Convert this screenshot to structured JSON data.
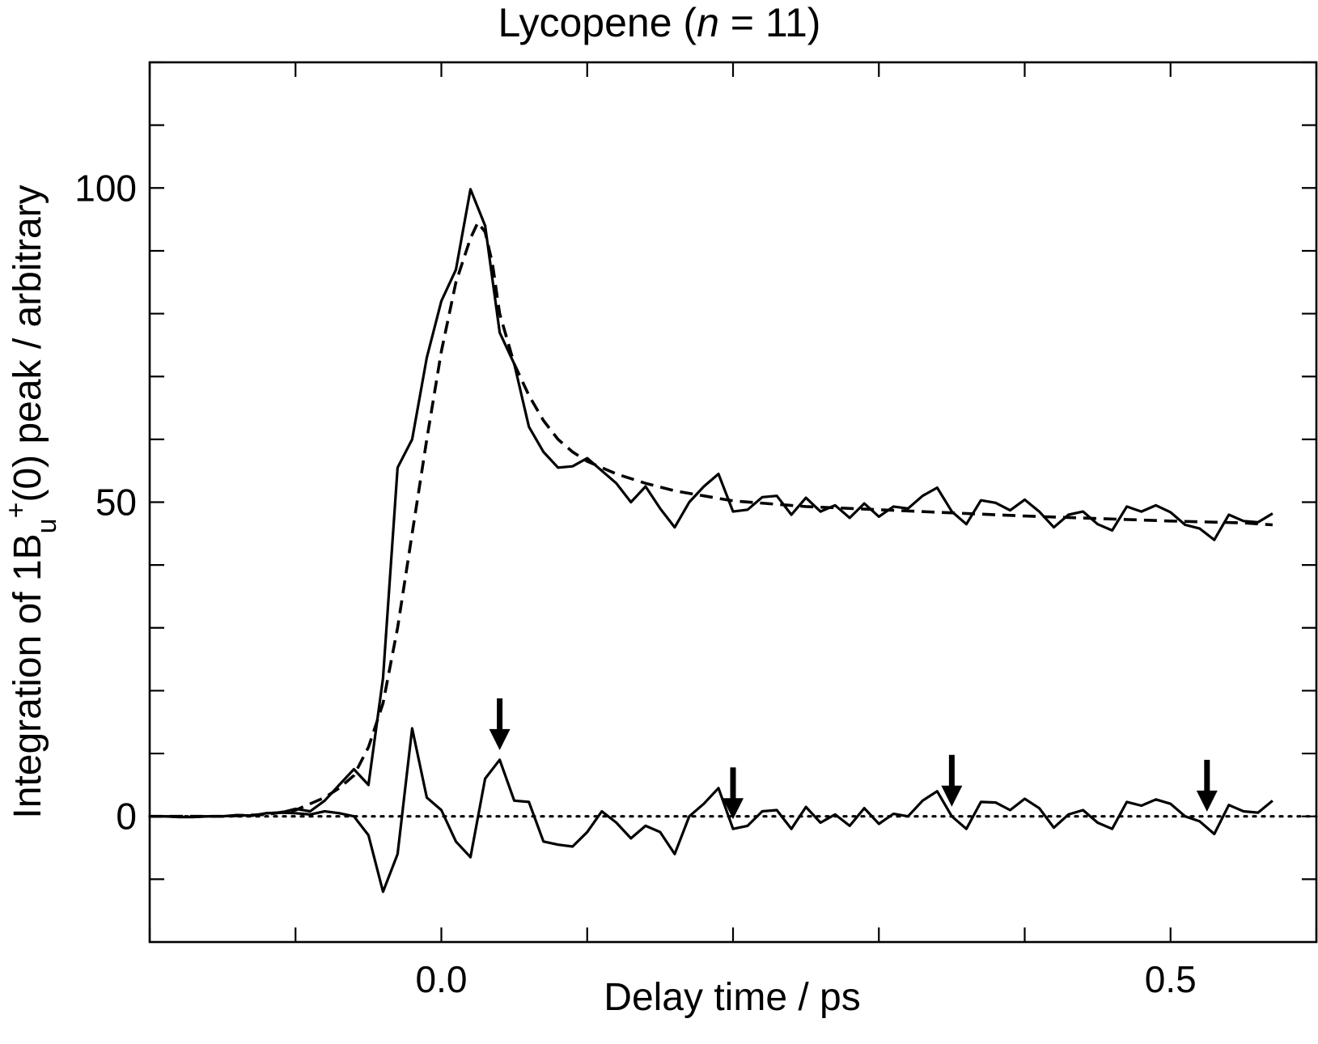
{
  "chart_data": {
    "type": "line",
    "title_main": "Lycopene (",
    "title_italic": "n",
    "title_rest": " = 11)",
    "xlabel": "Delay time / ps",
    "ylabel_parts": {
      "pre": "Integration of 1B",
      "sub": "u",
      "sup": "+",
      "post": "(0) peak / arbitrary"
    },
    "xlim": [
      -0.2,
      0.6
    ],
    "ylim": [
      -20,
      120
    ],
    "x_ticks": [
      -0.2,
      -0.1,
      0.0,
      0.1,
      0.2,
      0.3,
      0.4,
      0.5,
      0.6
    ],
    "x_tick_labels": [
      {
        "value": 0.0,
        "label": "0.0"
      },
      {
        "value": 0.5,
        "label": "0.5"
      }
    ],
    "y_ticks": [
      -10,
      0,
      10,
      20,
      30,
      40,
      50,
      60,
      70,
      80,
      90,
      100,
      110,
      120
    ],
    "y_tick_labels": [
      {
        "value": 0,
        "label": "0"
      },
      {
        "value": 50,
        "label": "50"
      },
      {
        "value": 100,
        "label": "100"
      }
    ],
    "series": [
      {
        "style": "solid",
        "points": [
          [
            -0.2,
            0
          ],
          [
            -0.19,
            0
          ],
          [
            -0.18,
            -0.1
          ],
          [
            -0.17,
            -0.1
          ],
          [
            -0.16,
            0
          ],
          [
            -0.15,
            0
          ],
          [
            -0.14,
            0.2
          ],
          [
            -0.13,
            0.1
          ],
          [
            -0.12,
            0.5
          ],
          [
            -0.11,
            0.6
          ],
          [
            -0.1,
            1.2
          ],
          [
            -0.09,
            0.8
          ],
          [
            -0.08,
            2.5
          ],
          [
            -0.07,
            5
          ],
          [
            -0.06,
            7.5
          ],
          [
            -0.05,
            5
          ],
          [
            -0.04,
            22
          ],
          [
            -0.03,
            55.5
          ],
          [
            -0.02,
            60
          ],
          [
            -0.01,
            73
          ],
          [
            0.0,
            82
          ],
          [
            0.01,
            87
          ],
          [
            0.02,
            99.8
          ],
          [
            0.03,
            94
          ],
          [
            0.04,
            77
          ],
          [
            0.05,
            72
          ],
          [
            0.06,
            62
          ],
          [
            0.07,
            58
          ],
          [
            0.08,
            55.5
          ],
          [
            0.09,
            55.7
          ],
          [
            0.1,
            57
          ],
          [
            0.11,
            55
          ],
          [
            0.12,
            53
          ],
          [
            0.13,
            50
          ],
          [
            0.14,
            52.5
          ],
          [
            0.15,
            49
          ],
          [
            0.16,
            46
          ],
          [
            0.17,
            50
          ],
          [
            0.18,
            52.5
          ],
          [
            0.19,
            54.5
          ],
          [
            0.2,
            48.5
          ],
          [
            0.21,
            48.8
          ],
          [
            0.22,
            50.8
          ],
          [
            0.23,
            51
          ],
          [
            0.24,
            48
          ],
          [
            0.25,
            50.7
          ],
          [
            0.26,
            48.5
          ],
          [
            0.27,
            49.5
          ],
          [
            0.28,
            47.5
          ],
          [
            0.29,
            49.8
          ],
          [
            0.3,
            47.7
          ],
          [
            0.31,
            49.3
          ],
          [
            0.32,
            49
          ],
          [
            0.33,
            51
          ],
          [
            0.34,
            52.3
          ],
          [
            0.35,
            48.5
          ],
          [
            0.36,
            46.5
          ],
          [
            0.37,
            50.3
          ],
          [
            0.38,
            49.9
          ],
          [
            0.39,
            48.7
          ],
          [
            0.4,
            50.4
          ],
          [
            0.41,
            48.5
          ],
          [
            0.42,
            46
          ],
          [
            0.43,
            48
          ],
          [
            0.44,
            48.5
          ],
          [
            0.45,
            46.5
          ],
          [
            0.46,
            45.5
          ],
          [
            0.47,
            49.3
          ],
          [
            0.48,
            48.5
          ],
          [
            0.49,
            49.5
          ],
          [
            0.5,
            48.4
          ],
          [
            0.51,
            46.4
          ],
          [
            0.52,
            45.8
          ],
          [
            0.53,
            44
          ],
          [
            0.54,
            48
          ],
          [
            0.55,
            47
          ],
          [
            0.56,
            46.8
          ],
          [
            0.57,
            48.2
          ]
        ]
      },
      {
        "style": "dashed",
        "points": [
          [
            -0.2,
            0
          ],
          [
            -0.15,
            0
          ],
          [
            -0.12,
            0.3
          ],
          [
            -0.1,
            1
          ],
          [
            -0.08,
            3
          ],
          [
            -0.07,
            4.5
          ],
          [
            -0.06,
            6.5
          ],
          [
            -0.05,
            11
          ],
          [
            -0.04,
            18
          ],
          [
            -0.03,
            30
          ],
          [
            -0.02,
            45
          ],
          [
            -0.01,
            60
          ],
          [
            0.0,
            74
          ],
          [
            0.01,
            85
          ],
          [
            0.02,
            92
          ],
          [
            0.025,
            94.5
          ],
          [
            0.03,
            93
          ],
          [
            0.035,
            88
          ],
          [
            0.04,
            80
          ],
          [
            0.05,
            72
          ],
          [
            0.06,
            67
          ],
          [
            0.07,
            63
          ],
          [
            0.08,
            60
          ],
          [
            0.09,
            58
          ],
          [
            0.1,
            56.5
          ],
          [
            0.12,
            54.5
          ],
          [
            0.14,
            53
          ],
          [
            0.16,
            51.8
          ],
          [
            0.18,
            51
          ],
          [
            0.2,
            50.2
          ],
          [
            0.25,
            49.3
          ],
          [
            0.3,
            48.8
          ],
          [
            0.35,
            48.3
          ],
          [
            0.4,
            47.8
          ],
          [
            0.45,
            47.4
          ],
          [
            0.5,
            47
          ],
          [
            0.55,
            46.7
          ],
          [
            0.57,
            46.4
          ]
        ]
      },
      {
        "style": "solid",
        "points": [
          [
            -0.2,
            0
          ],
          [
            -0.19,
            0
          ],
          [
            -0.18,
            -0.1
          ],
          [
            -0.17,
            -0.1
          ],
          [
            -0.16,
            0
          ],
          [
            -0.15,
            0
          ],
          [
            -0.14,
            0.2
          ],
          [
            -0.13,
            0.1
          ],
          [
            -0.12,
            0.5
          ],
          [
            -0.11,
            0.6
          ],
          [
            -0.1,
            0.5
          ],
          [
            -0.09,
            0.3
          ],
          [
            -0.08,
            0.8
          ],
          [
            -0.07,
            0.5
          ],
          [
            -0.06,
            0
          ],
          [
            -0.05,
            -3
          ],
          [
            -0.04,
            -12
          ],
          [
            -0.03,
            -6
          ],
          [
            -0.02,
            14
          ],
          [
            -0.01,
            3
          ],
          [
            0.0,
            1
          ],
          [
            0.01,
            -4
          ],
          [
            0.02,
            -6.5
          ],
          [
            0.03,
            6
          ],
          [
            0.04,
            9
          ],
          [
            0.05,
            2.5
          ],
          [
            0.06,
            2.3
          ],
          [
            0.07,
            -4
          ],
          [
            0.08,
            -4.5
          ],
          [
            0.09,
            -4.8
          ],
          [
            0.1,
            -2.5
          ],
          [
            0.11,
            0.8
          ],
          [
            0.12,
            -1
          ],
          [
            0.13,
            -3.5
          ],
          [
            0.14,
            -1.5
          ],
          [
            0.15,
            -2.5
          ],
          [
            0.16,
            -6
          ],
          [
            0.17,
            0
          ],
          [
            0.18,
            2
          ],
          [
            0.19,
            4.5
          ],
          [
            0.2,
            -2
          ],
          [
            0.21,
            -1.5
          ],
          [
            0.22,
            0.8
          ],
          [
            0.23,
            1
          ],
          [
            0.24,
            -2
          ],
          [
            0.25,
            1.5
          ],
          [
            0.26,
            -1
          ],
          [
            0.27,
            0.3
          ],
          [
            0.28,
            -1.5
          ],
          [
            0.29,
            1.3
          ],
          [
            0.3,
            -1.2
          ],
          [
            0.31,
            0.4
          ],
          [
            0.32,
            0
          ],
          [
            0.33,
            2.5
          ],
          [
            0.34,
            4
          ],
          [
            0.35,
            0
          ],
          [
            0.36,
            -2
          ],
          [
            0.37,
            2.3
          ],
          [
            0.38,
            2.2
          ],
          [
            0.39,
            1
          ],
          [
            0.4,
            2.8
          ],
          [
            0.41,
            1.3
          ],
          [
            0.42,
            -1.8
          ],
          [
            0.43,
            0.3
          ],
          [
            0.44,
            1
          ],
          [
            0.45,
            -1
          ],
          [
            0.46,
            -2
          ],
          [
            0.47,
            2.3
          ],
          [
            0.48,
            1.7
          ],
          [
            0.49,
            2.7
          ],
          [
            0.5,
            2
          ],
          [
            0.51,
            0
          ],
          [
            0.52,
            -0.8
          ],
          [
            0.53,
            -2.8
          ],
          [
            0.54,
            1.8
          ],
          [
            0.55,
            0.8
          ],
          [
            0.56,
            0.6
          ],
          [
            0.57,
            2.5
          ]
        ]
      },
      {
        "style": "dotted",
        "points": [
          [
            -0.2,
            0
          ],
          [
            0.6,
            0
          ]
        ]
      }
    ],
    "arrows_at_x": [
      0.04,
      0.2,
      0.35,
      0.525
    ]
  }
}
